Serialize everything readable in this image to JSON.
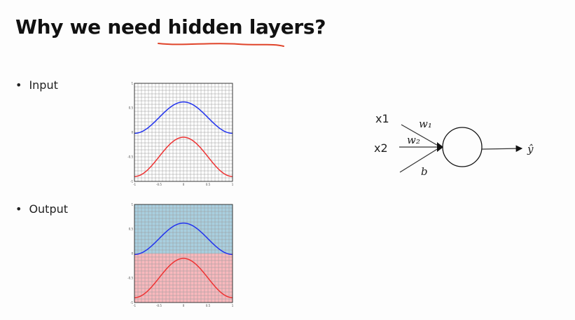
{
  "slide": {
    "title": "Why we need hidden layers?",
    "bullets": [
      {
        "label": "Input"
      },
      {
        "label": "Output"
      }
    ]
  },
  "neuron": {
    "input_labels": [
      "x1",
      "x2"
    ],
    "weight_labels": [
      "w₁",
      "w₂",
      "b"
    ],
    "output_label": "ŷ"
  },
  "colors": {
    "annotation_underline": "#e0442a",
    "blue_curve": "#2233ee",
    "red_curve": "#ee3333",
    "shade_blue": "#a9cfe0",
    "shade_red": "#f8b8bc"
  },
  "chart_data": [
    {
      "type": "line",
      "name": "input-plot",
      "xlim": [
        -1,
        1
      ],
      "ylim": [
        -1,
        1
      ],
      "x_ticks": [
        "-1",
        "-0.5",
        "0",
        "0.5",
        "1"
      ],
      "y_ticks": [
        "1",
        "0.5",
        "0",
        "-0.5",
        "-1"
      ],
      "grid": true,
      "series": [
        {
          "color": "#2233ee",
          "formula": "y = 0.3 + 0.32*cos(pi*x)"
        },
        {
          "color": "#ee3333",
          "formula": "y = -0.5 + 0.4*cos(pi*x)"
        }
      ]
    },
    {
      "type": "line",
      "name": "output-plot",
      "xlim": [
        -1,
        1
      ],
      "ylim": [
        -1,
        1
      ],
      "x_ticks": [
        "-1",
        "-0.5",
        "0",
        "0.5",
        "1"
      ],
      "y_ticks": [
        "1",
        "0.5",
        "0",
        "-0.5",
        "-1"
      ],
      "grid": true,
      "shaded_regions": [
        {
          "color": "#a9cfe0",
          "from_y": 0,
          "to_y": 1
        },
        {
          "color": "#f8b8bc",
          "from_y": -1,
          "to_y": 0
        }
      ],
      "series": [
        {
          "color": "#2233ee",
          "formula": "y = 0.3 + 0.32*cos(pi*x)"
        },
        {
          "color": "#ee3333",
          "formula": "y = -0.5 + 0.4*cos(pi*x)"
        }
      ]
    }
  ]
}
